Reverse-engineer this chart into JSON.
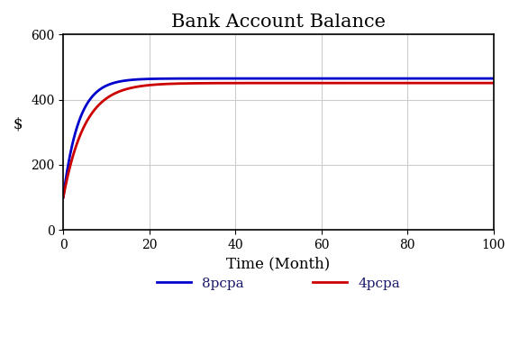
{
  "title": "Bank Account Balance",
  "xlabel": "Time (Month)",
  "ylabel": "$",
  "xlim": [
    0,
    100
  ],
  "ylim": [
    0,
    600
  ],
  "xticks": [
    0,
    20,
    40,
    60,
    80,
    100
  ],
  "yticks": [
    0,
    200,
    400,
    600
  ],
  "initial_balance": 100,
  "L8": 465.0,
  "k8": 0.28,
  "L4": 451.0,
  "k4": 0.2,
  "color_8pcpa": "#0000cc",
  "color_4pcpa": "#cc0000",
  "label_8pcpa": "8pcpa",
  "label_4pcpa": "4pcpa",
  "linewidth": 2.0,
  "title_fontsize": 15,
  "label_fontsize": 12,
  "tick_fontsize": 10,
  "legend_fontsize": 11,
  "grid_color": "#cccccc",
  "background_color": "#ffffff"
}
